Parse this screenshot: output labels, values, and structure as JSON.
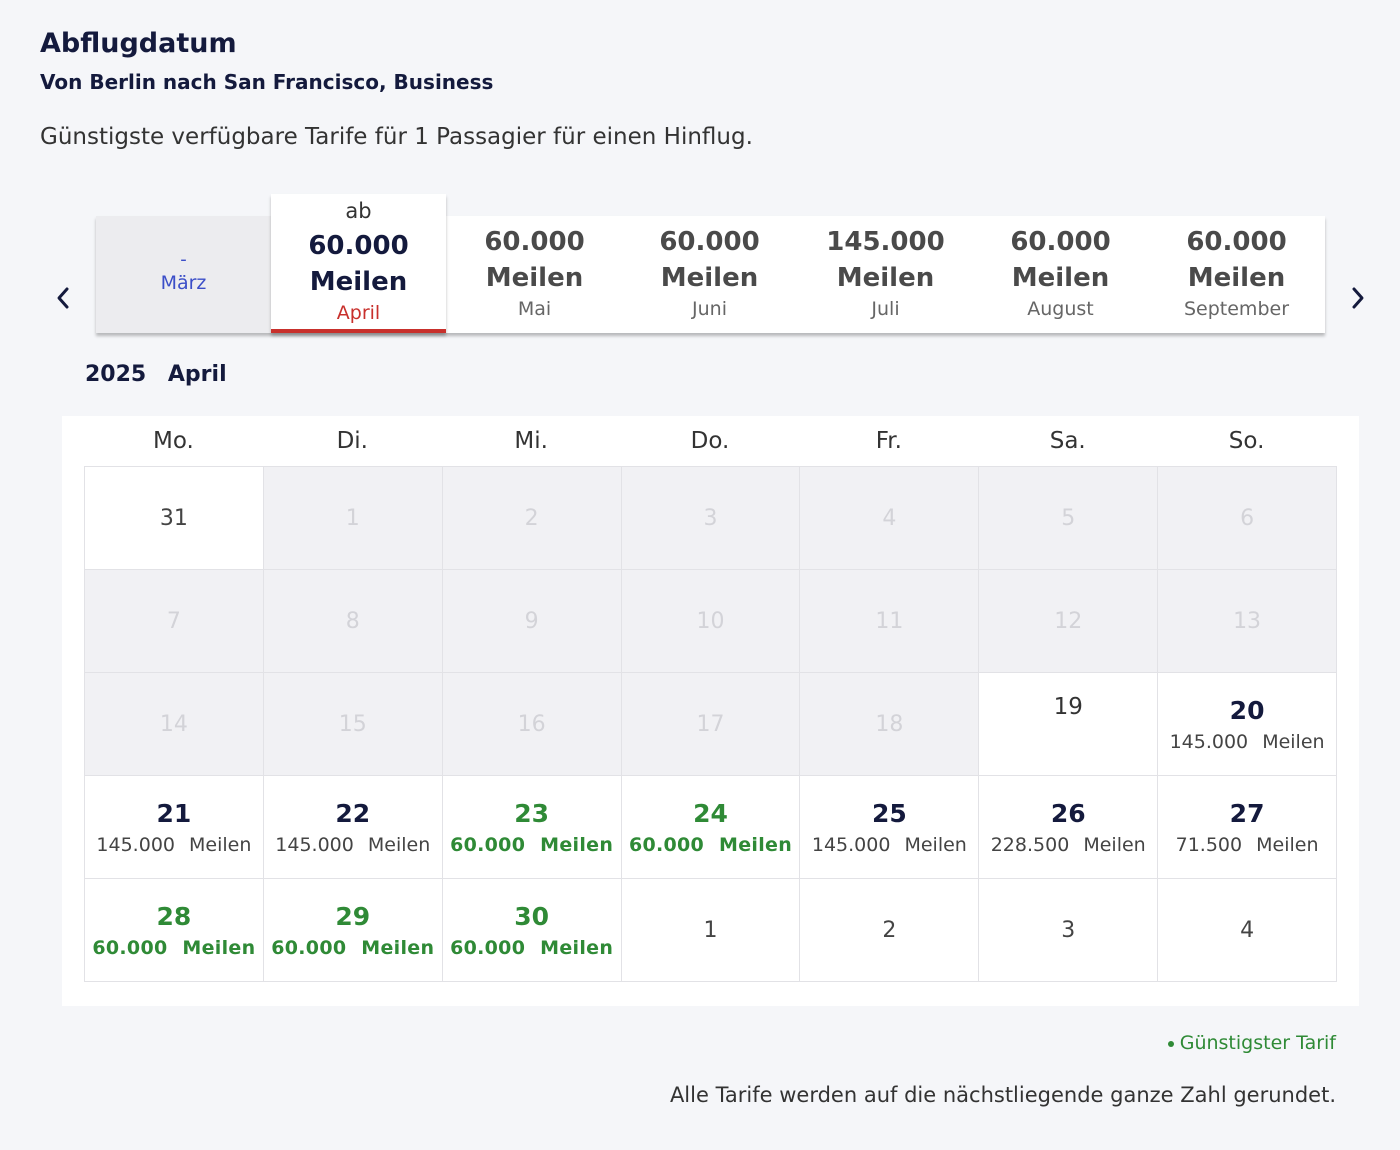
{
  "header": {
    "title": "Abflugdatum",
    "subtitle": "Von Berlin nach San Francisco, Business",
    "description": "Günstigste verfügbare Tarife für 1 Passagier für einen Hinflug."
  },
  "months": [
    {
      "dash": "-",
      "label": "März"
    },
    {
      "prefix": "ab",
      "price": "60.000",
      "unit": "Meilen",
      "label": "April"
    },
    {
      "price": "60.000",
      "unit": "Meilen",
      "label": "Mai"
    },
    {
      "price": "60.000",
      "unit": "Meilen",
      "label": "Juni"
    },
    {
      "price": "145.000",
      "unit": "Meilen",
      "label": "Juli"
    },
    {
      "price": "60.000",
      "unit": "Meilen",
      "label": "August"
    },
    {
      "price": "60.000",
      "unit": "Meilen",
      "label": "September"
    }
  ],
  "calendar": {
    "year": "2025",
    "month": "April",
    "weekdays": [
      "Mo.",
      "Di.",
      "Mi.",
      "Do.",
      "Fr.",
      "Sa.",
      "So."
    ],
    "cells": [
      {
        "day": "31"
      },
      {
        "day": "1"
      },
      {
        "day": "2"
      },
      {
        "day": "3"
      },
      {
        "day": "4"
      },
      {
        "day": "5"
      },
      {
        "day": "6"
      },
      {
        "day": "7"
      },
      {
        "day": "8"
      },
      {
        "day": "9"
      },
      {
        "day": "10"
      },
      {
        "day": "11"
      },
      {
        "day": "12"
      },
      {
        "day": "13"
      },
      {
        "day": "14"
      },
      {
        "day": "15"
      },
      {
        "day": "16"
      },
      {
        "day": "17"
      },
      {
        "day": "18"
      },
      {
        "day": "19"
      },
      {
        "day": "20",
        "price": "145.000 Meilen"
      },
      {
        "day": "21",
        "price": "145.000 Meilen"
      },
      {
        "day": "22",
        "price": "145.000 Meilen"
      },
      {
        "day": "23",
        "price": "60.000 Meilen"
      },
      {
        "day": "24",
        "price": "60.000 Meilen"
      },
      {
        "day": "25",
        "price": "145.000 Meilen"
      },
      {
        "day": "26",
        "price": "228.500 Meilen"
      },
      {
        "day": "27",
        "price": "71.500 Meilen"
      },
      {
        "day": "28",
        "price": "60.000 Meilen"
      },
      {
        "day": "29",
        "price": "60.000 Meilen"
      },
      {
        "day": "30",
        "price": "60.000 Meilen"
      },
      {
        "day": "1"
      },
      {
        "day": "2"
      },
      {
        "day": "3"
      },
      {
        "day": "4"
      }
    ]
  },
  "legend": "Günstigster Tarif",
  "footnote": "Alle Tarife werden auf die nächstliegende ganze Zahl gerundet.",
  "icons": {
    "prev": "chevron-left-icon",
    "next": "chevron-right-icon"
  },
  "colors": {
    "cheapest": "#2f8a36",
    "selected_accent": "#c8302c",
    "link": "#3b4ec8"
  }
}
